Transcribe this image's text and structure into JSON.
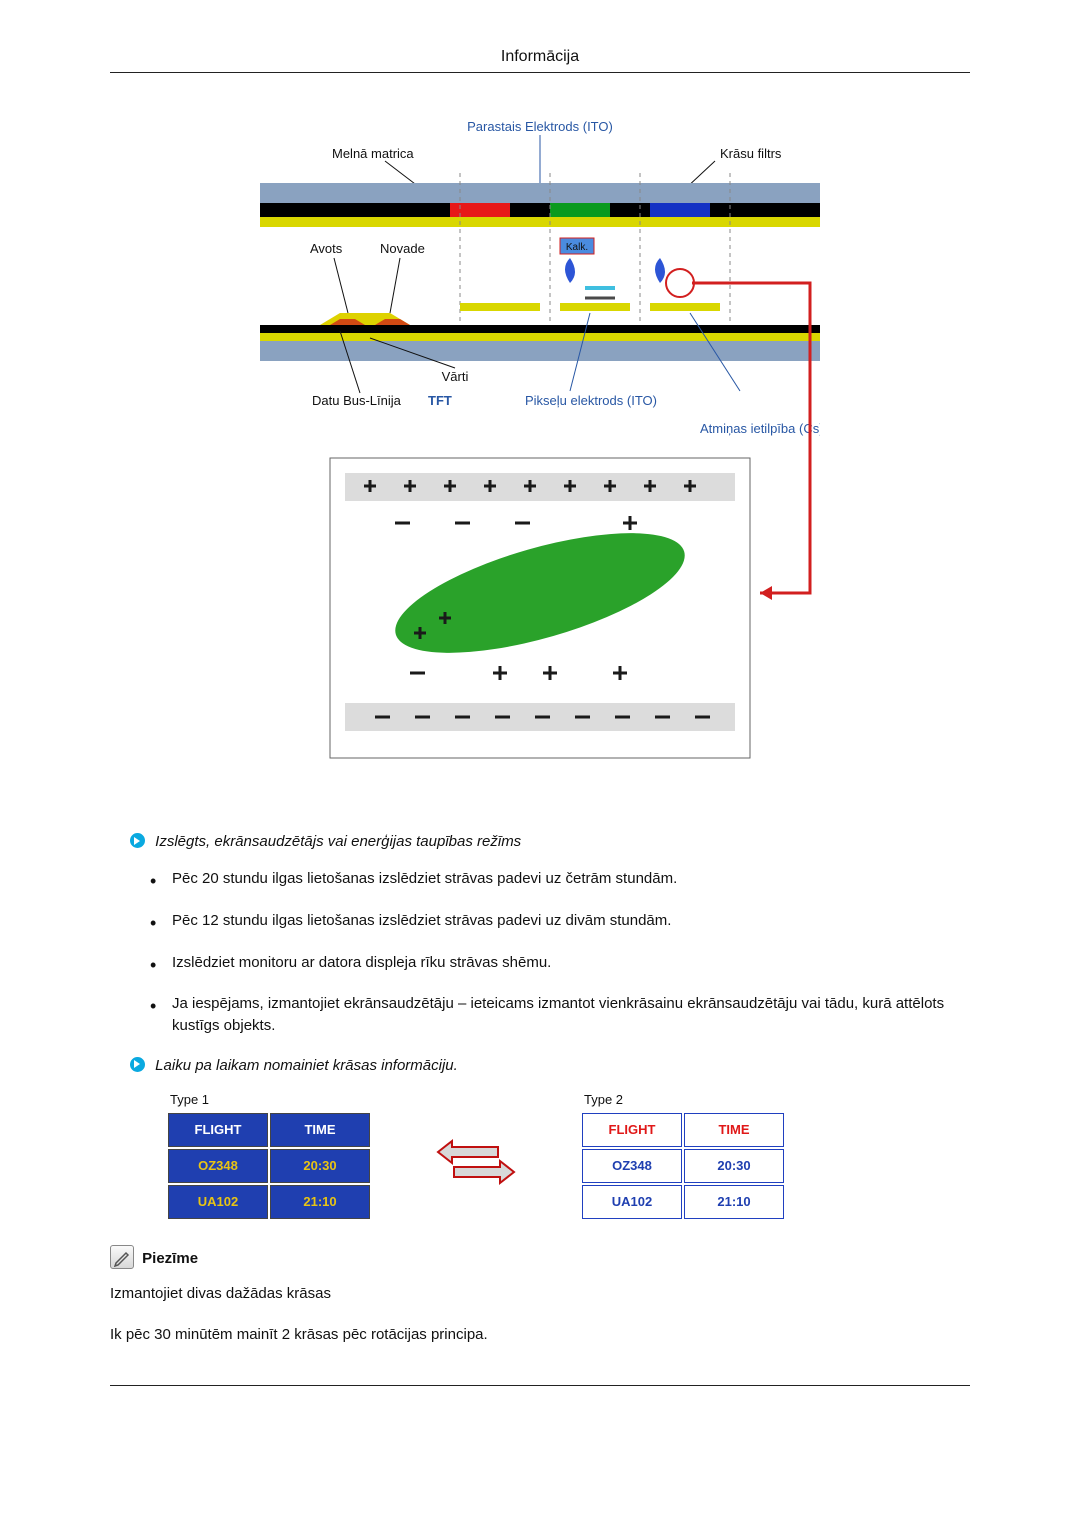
{
  "page": {
    "title": "Informācija"
  },
  "diagram": {
    "labels": {
      "common_electrode": "Parastais Elektrods (ITO)",
      "black_matrix": "Melnā matrica",
      "color_filter": "Krāsu filtrs",
      "source": "Avots",
      "drain": "Novade",
      "gate": "Vārti",
      "data_bus": "Datu Bus-Līnija",
      "tft": "TFT",
      "pixel_electrode": "Pikseļu elektrods (ITO)",
      "storage_cap": "Atmiņas ietilpība (Cs)",
      "kalk": "Kalk."
    },
    "colors": {
      "label_text": "#2857a4",
      "glass": "#8aa2c0",
      "black_matrix": "#000000",
      "electrode": "#d9d700",
      "color_filter_r": "#e71818",
      "color_filter_g": "#0a9a1e",
      "color_filter_b": "#1432c4",
      "tft_body": "#ded200",
      "source_drain": "#d24a13",
      "wire": "#808080",
      "arrow_red": "#d21f1f",
      "capacitor_top": "#3fbfe0",
      "capacitor_bot_border": "#4a4a4a",
      "lc_fill": "#2aa22a",
      "plus_minus": "#1a1a1a"
    }
  },
  "section1": {
    "heading": "Izslēgts, ekrānsaudzētājs vai enerģijas taupības režīms",
    "items": [
      "Pēc 20 stundu ilgas lietošanas izslēdziet strāvas padevi uz četrām stundām.",
      "Pēc 12 stundu ilgas lietošanas izslēdziet strāvas padevi uz divām stundām.",
      "Izslēdziet monitoru ar datora displeja rīku strāvas shēmu.",
      "Ja iespējams, izmantojiet ekrānsaudzētāju – ieteicams izmantot vienkrāsainu ekrānsaudzētāju vai tādu, kurā attēlots kustīgs objekts."
    ]
  },
  "section2": {
    "heading": "Laiku pa laikam nomainiet krāsas informāciju.",
    "type1_label": "Type 1",
    "type2_label": "Type 2",
    "columns": [
      "FLIGHT",
      "TIME"
    ],
    "rows": [
      [
        "OZ348",
        "20:30"
      ],
      [
        "UA102",
        "21:10"
      ]
    ],
    "type1_colors": {
      "bg": "#1f3fb0",
      "header_text": "#ffffff",
      "cell_text": "#e8c414"
    },
    "type2_colors": {
      "bg": "#ffffff",
      "header_text": "#e01818",
      "cell_text": "#1f3fb0",
      "border": "#2040c0"
    },
    "swap_colors": {
      "fill": "#d8d8d8",
      "stroke": "#c01010"
    }
  },
  "note": {
    "title": "Piezīme",
    "lines": [
      "Izmantojiet divas dažādas krāsas",
      "Ik pēc 30 minūtēm mainīt 2 krāsas pēc rotācijas principa."
    ]
  }
}
